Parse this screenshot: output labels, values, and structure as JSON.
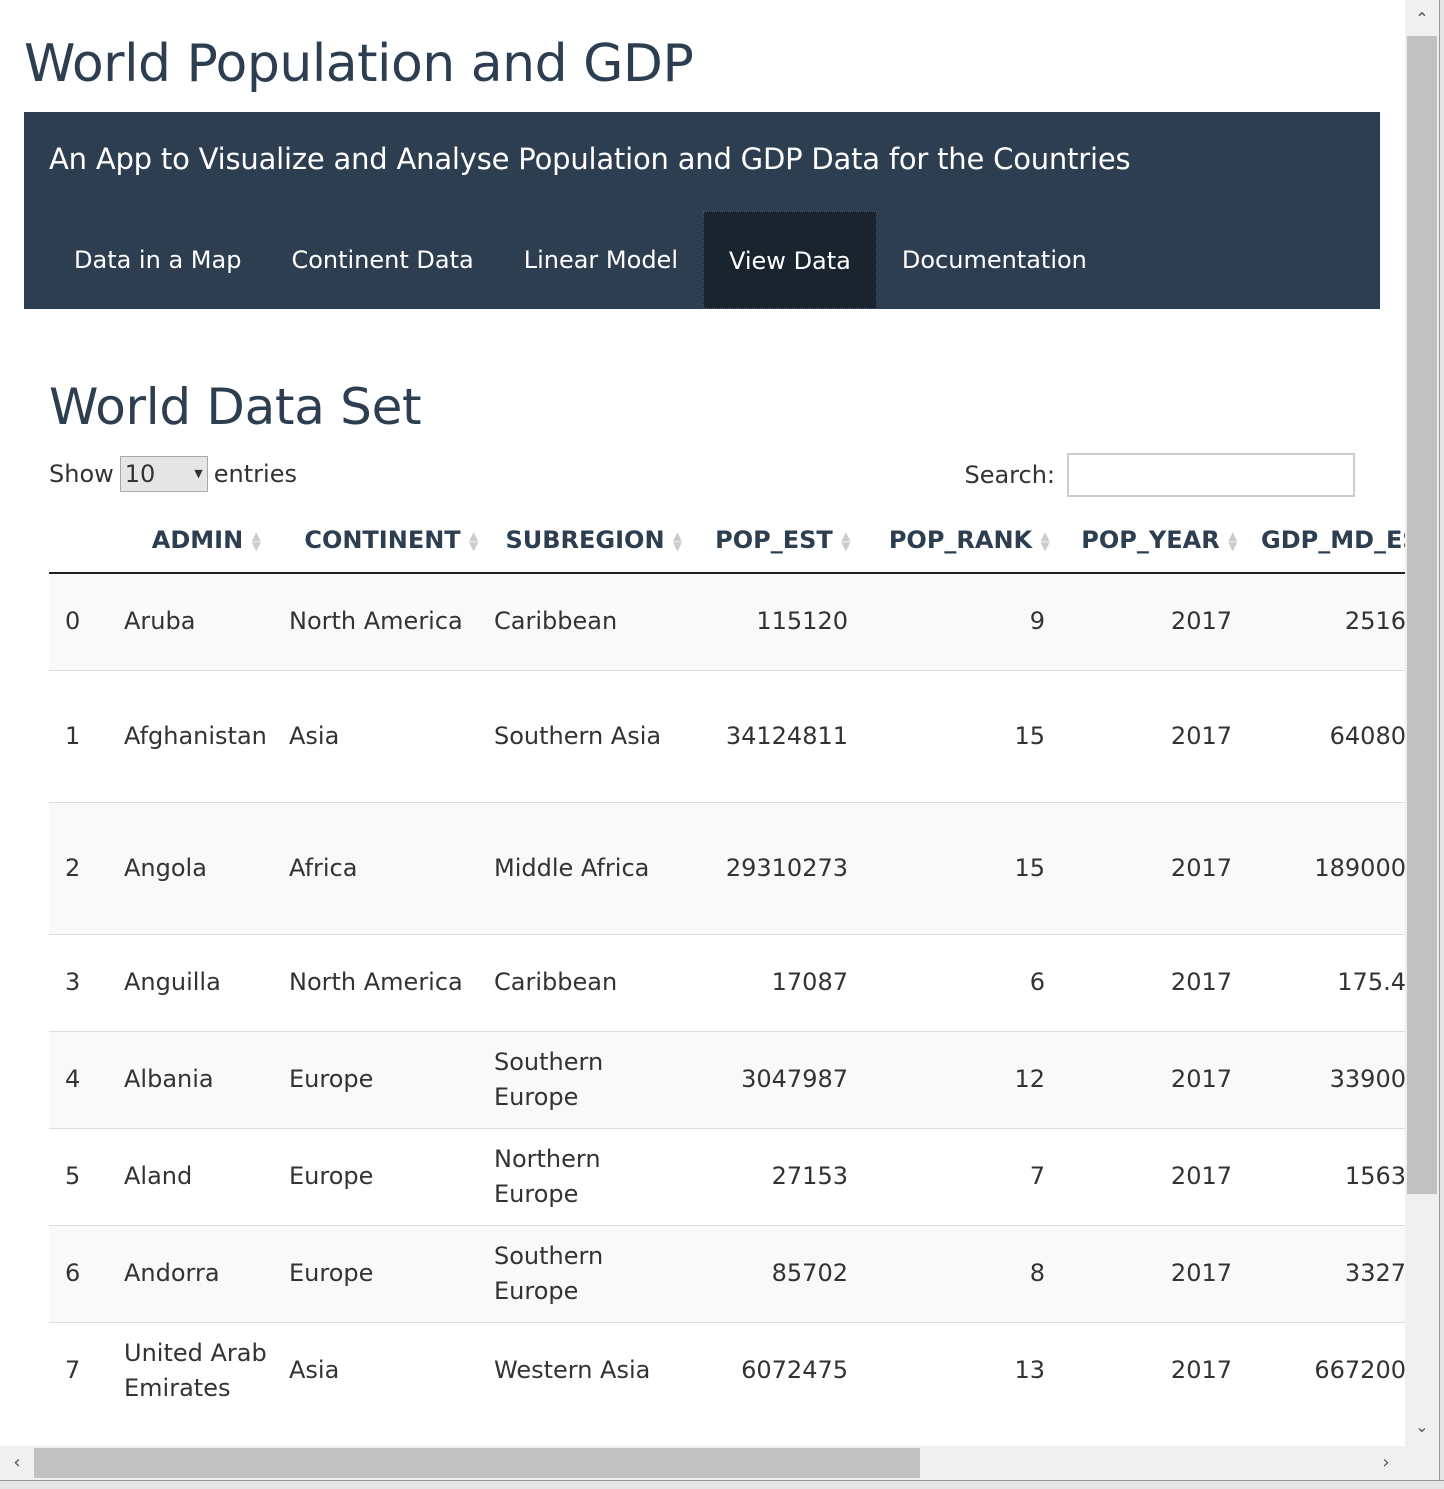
{
  "app": {
    "title": "World Population and GDP",
    "subtitle": "An App to Visualize and Analyse Population and GDP Data for the Countries"
  },
  "tabs": [
    {
      "label": "Data in a Map",
      "active": false
    },
    {
      "label": "Continent Data",
      "active": false
    },
    {
      "label": "Linear Model",
      "active": false
    },
    {
      "label": "View Data",
      "active": true
    },
    {
      "label": "Documentation",
      "active": false
    }
  ],
  "section": {
    "title": "World Data Set"
  },
  "length": {
    "show_label": "Show",
    "value": "10",
    "entries_label": "entries"
  },
  "search": {
    "label": "Search:",
    "value": ""
  },
  "table": {
    "columns": [
      "",
      "ADMIN",
      "CONTINENT",
      "SUBREGION",
      "POP_EST",
      "POP_RANK",
      "POP_YEAR",
      "GDP_MD_EST"
    ],
    "rows": [
      [
        "0",
        "Aruba",
        "North America",
        "Caribbean",
        "115120",
        "9",
        "2017",
        "2516"
      ],
      [
        "1",
        "Afghanistan",
        "Asia",
        "Southern Asia",
        "34124811",
        "15",
        "2017",
        "64080"
      ],
      [
        "2",
        "Angola",
        "Africa",
        "Middle Africa",
        "29310273",
        "15",
        "2017",
        "189000"
      ],
      [
        "3",
        "Anguilla",
        "North America",
        "Caribbean",
        "17087",
        "6",
        "2017",
        "175.4"
      ],
      [
        "4",
        "Albania",
        "Europe",
        "Southern Europe",
        "3047987",
        "12",
        "2017",
        "33900"
      ],
      [
        "5",
        "Aland",
        "Europe",
        "Northern Europe",
        "27153",
        "7",
        "2017",
        "1563"
      ],
      [
        "6",
        "Andorra",
        "Europe",
        "Southern Europe",
        "85702",
        "8",
        "2017",
        "3327"
      ],
      [
        "7",
        "United Arab Emirates",
        "Asia",
        "Western Asia",
        "6072475",
        "13",
        "2017",
        "667200"
      ]
    ],
    "row_heights": [
      97,
      132,
      132,
      97,
      97,
      97,
      97,
      97
    ]
  }
}
